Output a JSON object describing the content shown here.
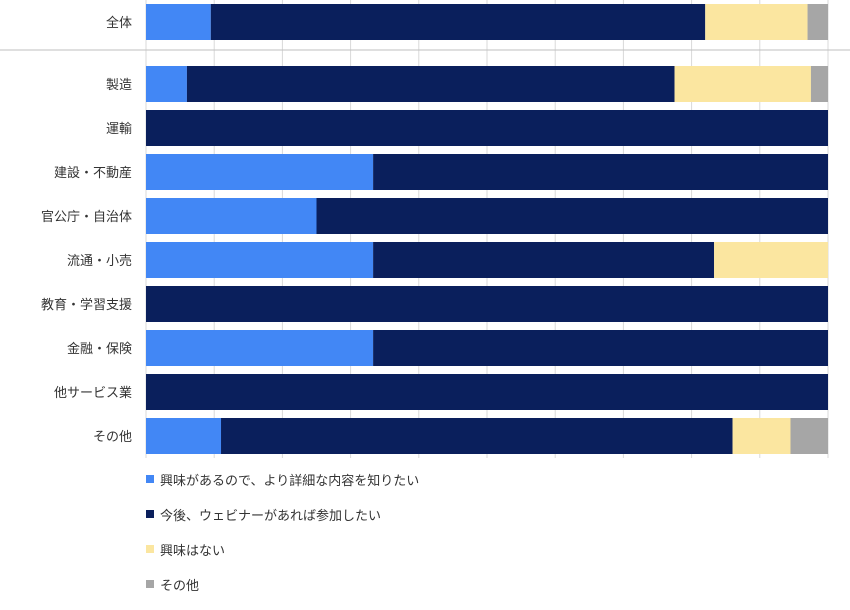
{
  "chart_data": {
    "type": "bar",
    "orientation": "horizontal",
    "stacked": true,
    "percent_stacked": true,
    "xlim": [
      0,
      100
    ],
    "grid": true,
    "legend_position": "bottom-left",
    "title": "",
    "xlabel": "",
    "ylabel": "",
    "categories": [
      "全体",
      "製造",
      "運輸",
      "建設・不動産",
      "官公庁・自治体",
      "流通・小売",
      "教育・学習支援",
      "金融・保険",
      "他サービス業",
      "その他"
    ],
    "series": [
      {
        "name": "興味があるので、より詳細な内容を知りたい",
        "color": "#4287f5",
        "values": [
          9.5,
          6,
          0,
          33.3,
          25,
          33.3,
          0,
          33.3,
          0,
          11
        ]
      },
      {
        "name": "今後、ウェビナーがあれば参加したい",
        "color": "#0a1f5c",
        "values": [
          72.5,
          71.5,
          100,
          66.7,
          75,
          50,
          100,
          66.7,
          100,
          75
        ]
      },
      {
        "name": "興味はない",
        "color": "#fbe6a0",
        "values": [
          15,
          20,
          0,
          0,
          0,
          16.7,
          0,
          0,
          0,
          8.5
        ]
      },
      {
        "name": "その他",
        "color": "#a6a6a6",
        "values": [
          3,
          2.5,
          0,
          0,
          0,
          0,
          0,
          0,
          0,
          5.5
        ]
      }
    ]
  }
}
